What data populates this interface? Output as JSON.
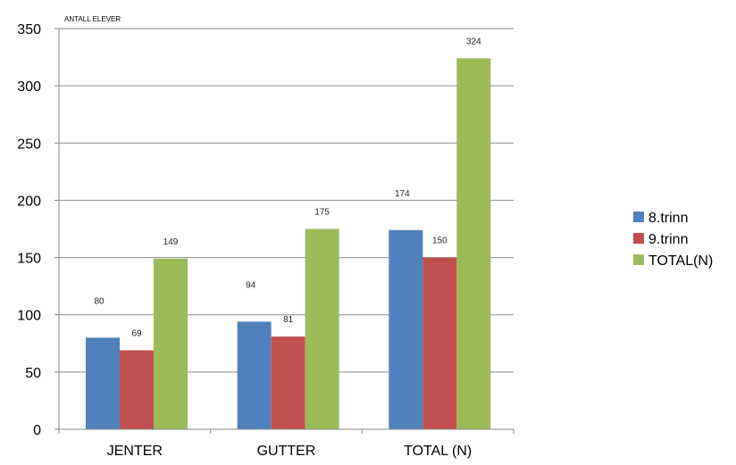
{
  "chart_data": {
    "type": "bar",
    "ylabel": "ANTALL ELEVER",
    "categories": [
      "JENTER",
      "GUTTER",
      "TOTAL (N)"
    ],
    "series": [
      {
        "name": "8.trinn",
        "color": "#4F81BD",
        "values": [
          80,
          94,
          174
        ]
      },
      {
        "name": "9.trinn",
        "color": "#C0504D",
        "values": [
          69,
          81,
          150
        ]
      },
      {
        "name": "TOTAL(N)",
        "color": "#9BBB59",
        "values": [
          149,
          175,
          324
        ]
      }
    ],
    "ylim": [
      0,
      350
    ],
    "yticks": [
      0,
      50,
      100,
      150,
      200,
      250,
      300,
      350
    ],
    "grid": true,
    "legend": "right"
  }
}
